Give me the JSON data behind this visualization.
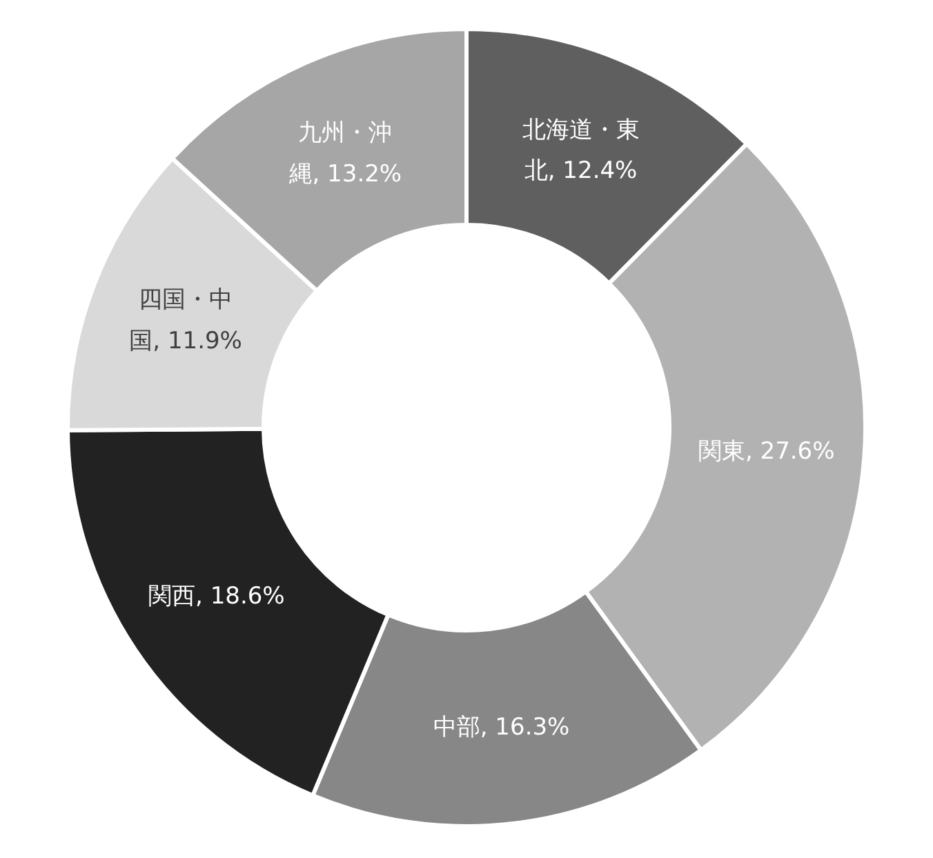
{
  "chart_data": {
    "type": "donut",
    "categories": [
      "北海道・東北",
      "関東",
      "中部",
      "関西",
      "四国・中国",
      "九州・沖縄"
    ],
    "values": [
      12.4,
      27.6,
      16.3,
      18.6,
      11.9,
      13.2
    ],
    "value_labels": [
      "12.4%",
      "27.6%",
      "16.3%",
      "18.6%",
      "11.9%",
      "13.2%"
    ],
    "colors": [
      "#5f5f5f",
      "#b2b2b2",
      "#878787",
      "#222222",
      "#d9d9d9",
      "#a6a6a6"
    ]
  }
}
